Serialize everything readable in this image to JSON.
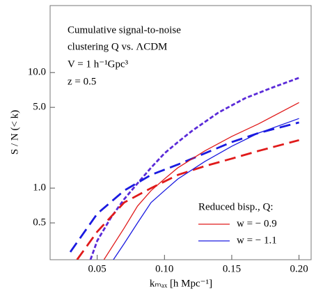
{
  "chart_data": {
    "type": "line",
    "annotations": [
      "Cumulative signal-to-noise",
      "clustering Q vs. ΛCDM",
      "V = 1 h⁻¹Gpc³",
      "z = 0.5"
    ],
    "xlabel": "kₘₐₓ [h Mpc⁻¹]",
    "ylabel": "S / N (< k)",
    "legend_title": "Reduced bisp., Q:",
    "legend_position": "lower right",
    "xlim": [
      0.015,
      0.209
    ],
    "ylim": [
      0.24,
      38
    ],
    "log_y": true,
    "xticks": [
      0.05,
      {
        "value": 0.1,
        "label": "0.10"
      },
      0.15,
      {
        "value": 0.2,
        "label": "0.20"
      }
    ],
    "yticks": [
      {
        "value": 10,
        "label": "10.0"
      },
      {
        "value": 5,
        "label": "5.0"
      },
      {
        "value": 1,
        "label": "1.0"
      },
      0.5
    ],
    "series": [
      {
        "color": "#5a2ad8",
        "style": "short-dash",
        "x": [
          0.045,
          0.05,
          0.06,
          0.07,
          0.08,
          0.09,
          0.1,
          0.11,
          0.12,
          0.14,
          0.16,
          0.18,
          0.2
        ],
        "values": [
          0.24,
          0.35,
          0.55,
          0.8,
          1.1,
          1.5,
          2.0,
          2.5,
          3.1,
          4.5,
          6.0,
          7.4,
          9.0
        ]
      },
      {
        "color": "#1a1ae0",
        "style": "long-dash",
        "x": [
          0.03,
          0.05,
          0.07,
          0.09,
          0.11,
          0.13,
          0.15,
          0.17,
          0.2
        ],
        "values": [
          0.28,
          0.6,
          0.95,
          1.3,
          1.6,
          2.0,
          2.5,
          3.0,
          3.7
        ]
      },
      {
        "color": "#e01a1a",
        "style": "long-dash",
        "x": [
          0.035,
          0.05,
          0.07,
          0.09,
          0.11,
          0.13,
          0.15,
          0.17,
          0.2
        ],
        "values": [
          0.24,
          0.42,
          0.75,
          1.0,
          1.3,
          1.55,
          1.8,
          2.1,
          2.6
        ]
      },
      {
        "name": "w = − 0.9",
        "color": "#e01a1a",
        "style": "solid",
        "x": [
          0.055,
          0.07,
          0.08,
          0.09,
          0.1,
          0.11,
          0.13,
          0.15,
          0.17,
          0.2
        ],
        "values": [
          0.24,
          0.45,
          0.7,
          0.95,
          1.2,
          1.5,
          2.1,
          2.8,
          3.6,
          5.5
        ]
      },
      {
        "name": "w = − 1.1",
        "color": "#1a1ae0",
        "style": "solid",
        "x": [
          0.062,
          0.07,
          0.08,
          0.09,
          0.1,
          0.11,
          0.13,
          0.15,
          0.17,
          0.2
        ],
        "values": [
          0.24,
          0.33,
          0.5,
          0.75,
          0.95,
          1.2,
          1.7,
          2.3,
          3.0,
          4.0
        ]
      }
    ]
  }
}
